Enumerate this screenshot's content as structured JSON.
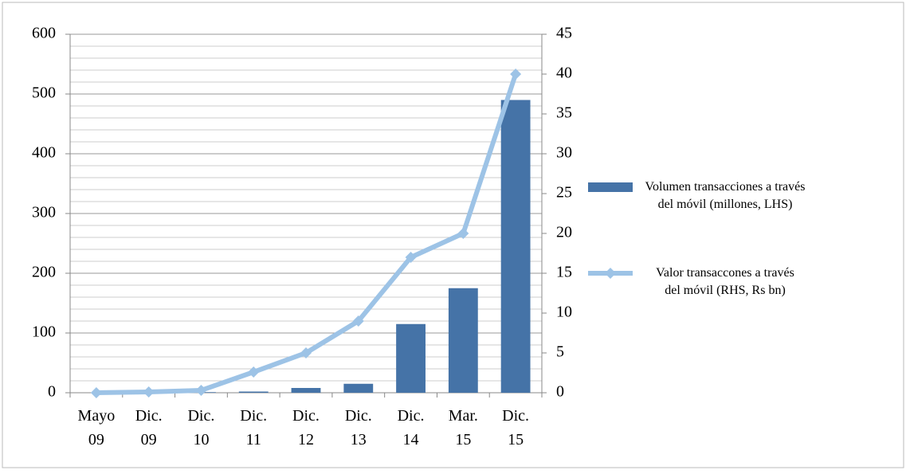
{
  "chart_data": {
    "type": "bar-line",
    "categories": [
      "Mayo 09",
      "Dic. 09",
      "Dic. 10",
      "Dic. 11",
      "Dic. 12",
      "Dic. 13",
      "Dic. 14",
      "Mar. 15",
      "Dic. 15"
    ],
    "series": [
      {
        "name": "Volumen transacciones a través del móvil (millones, LHS)",
        "type": "bar",
        "color": "#4573a7",
        "values": [
          0,
          0.5,
          1,
          2,
          8,
          15,
          115,
          175,
          490
        ]
      },
      {
        "name": "Valor transaccones a través del móvil (RHS, Rs bn)",
        "type": "line",
        "axis": "y2",
        "color": "#9dc3e6",
        "values": [
          0,
          0.1,
          0.3,
          2.6,
          5,
          9,
          17,
          20,
          40
        ]
      }
    ],
    "ylim": [
      0,
      600
    ],
    "yticks": [
      0,
      100,
      200,
      300,
      400,
      500,
      600
    ],
    "y2lim": [
      0,
      45
    ],
    "y2ticks": [
      0,
      5,
      10,
      15,
      20,
      25,
      30,
      35,
      40,
      45
    ],
    "grid": true,
    "legend": "right"
  }
}
